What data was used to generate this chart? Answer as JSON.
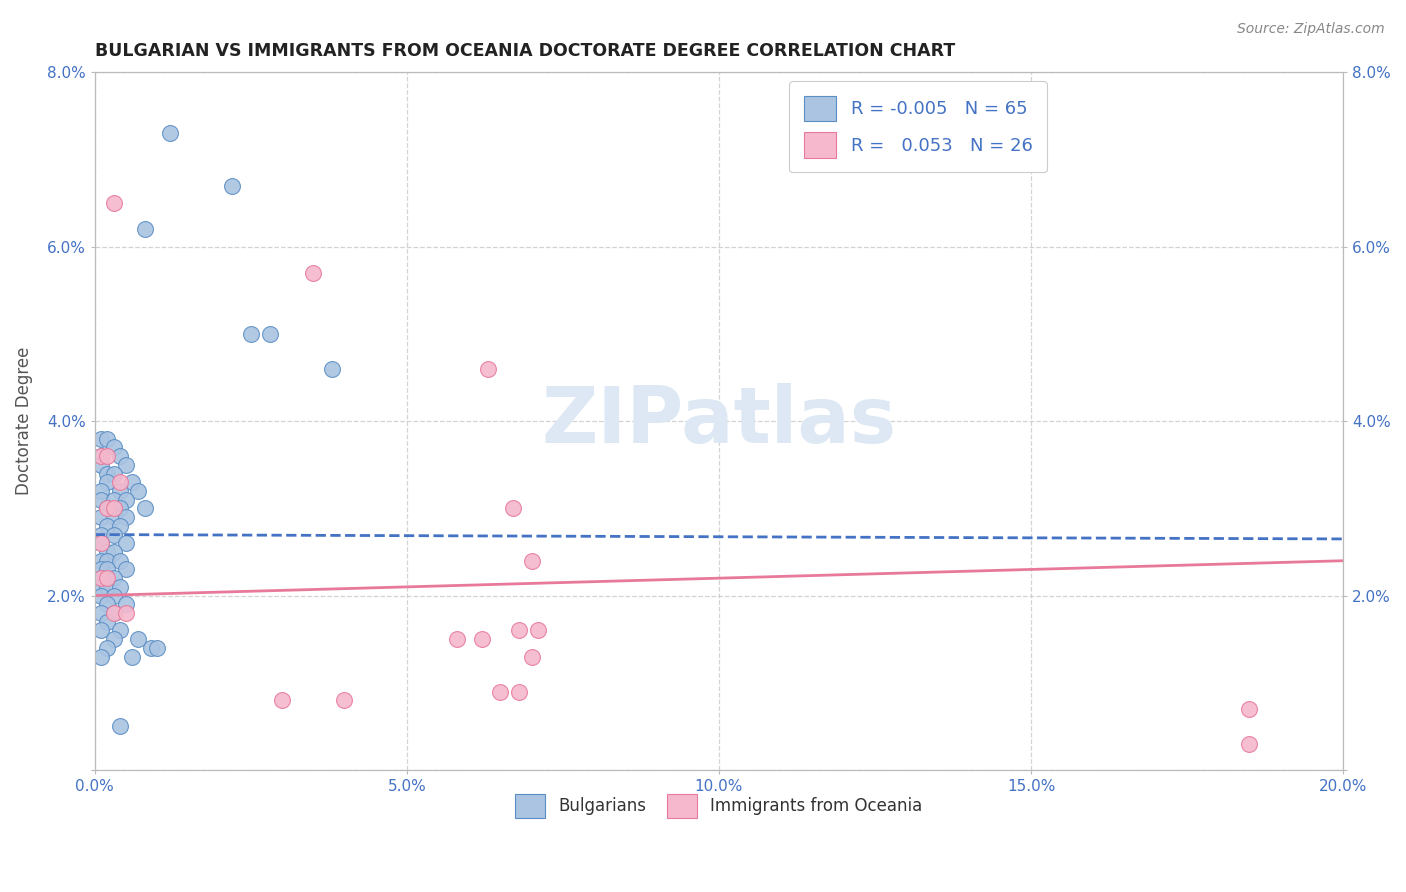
{
  "title": "BULGARIAN VS IMMIGRANTS FROM OCEANIA DOCTORATE DEGREE CORRELATION CHART",
  "source": "Source: ZipAtlas.com",
  "ylabel_label": "Doctorate Degree",
  "x_min": 0.0,
  "x_max": 0.2,
  "y_min": 0.0,
  "y_max": 0.08,
  "x_ticks": [
    0.0,
    0.05,
    0.1,
    0.15,
    0.2
  ],
  "y_ticks": [
    0.0,
    0.02,
    0.04,
    0.06,
    0.08
  ],
  "blue_R": "-0.005",
  "blue_N": "65",
  "pink_R": "0.053",
  "pink_N": "26",
  "blue_color": "#aac4e2",
  "pink_color": "#f5b8cc",
  "blue_edge_color": "#5b8ec4",
  "pink_edge_color": "#e8799a",
  "blue_line_color": "#4472c4",
  "pink_line_color": "#e8799a",
  "blue_scatter": [
    [
      0.012,
      0.073
    ],
    [
      0.022,
      0.067
    ],
    [
      0.008,
      0.062
    ],
    [
      0.025,
      0.05
    ],
    [
      0.028,
      0.05
    ],
    [
      0.038,
      0.046
    ],
    [
      0.001,
      0.038
    ],
    [
      0.002,
      0.038
    ],
    [
      0.003,
      0.037
    ],
    [
      0.001,
      0.036
    ],
    [
      0.004,
      0.036
    ],
    [
      0.001,
      0.035
    ],
    [
      0.005,
      0.035
    ],
    [
      0.002,
      0.034
    ],
    [
      0.003,
      0.034
    ],
    [
      0.002,
      0.033
    ],
    [
      0.006,
      0.033
    ],
    [
      0.001,
      0.032
    ],
    [
      0.004,
      0.032
    ],
    [
      0.007,
      0.032
    ],
    [
      0.001,
      0.031
    ],
    [
      0.003,
      0.031
    ],
    [
      0.005,
      0.031
    ],
    [
      0.002,
      0.03
    ],
    [
      0.004,
      0.03
    ],
    [
      0.008,
      0.03
    ],
    [
      0.001,
      0.029
    ],
    [
      0.003,
      0.029
    ],
    [
      0.005,
      0.029
    ],
    [
      0.002,
      0.028
    ],
    [
      0.004,
      0.028
    ],
    [
      0.001,
      0.027
    ],
    [
      0.003,
      0.027
    ],
    [
      0.001,
      0.026
    ],
    [
      0.005,
      0.026
    ],
    [
      0.002,
      0.025
    ],
    [
      0.003,
      0.025
    ],
    [
      0.001,
      0.024
    ],
    [
      0.002,
      0.024
    ],
    [
      0.004,
      0.024
    ],
    [
      0.001,
      0.023
    ],
    [
      0.002,
      0.023
    ],
    [
      0.005,
      0.023
    ],
    [
      0.001,
      0.022
    ],
    [
      0.003,
      0.022
    ],
    [
      0.001,
      0.021
    ],
    [
      0.002,
      0.021
    ],
    [
      0.004,
      0.021
    ],
    [
      0.001,
      0.02
    ],
    [
      0.003,
      0.02
    ],
    [
      0.002,
      0.019
    ],
    [
      0.005,
      0.019
    ],
    [
      0.001,
      0.018
    ],
    [
      0.003,
      0.018
    ],
    [
      0.002,
      0.017
    ],
    [
      0.001,
      0.016
    ],
    [
      0.004,
      0.016
    ],
    [
      0.003,
      0.015
    ],
    [
      0.007,
      0.015
    ],
    [
      0.002,
      0.014
    ],
    [
      0.009,
      0.014
    ],
    [
      0.01,
      0.014
    ],
    [
      0.001,
      0.013
    ],
    [
      0.006,
      0.013
    ],
    [
      0.004,
      0.005
    ]
  ],
  "pink_scatter": [
    [
      0.003,
      0.065
    ],
    [
      0.063,
      0.046
    ],
    [
      0.035,
      0.057
    ],
    [
      0.001,
      0.036
    ],
    [
      0.002,
      0.036
    ],
    [
      0.004,
      0.033
    ],
    [
      0.002,
      0.03
    ],
    [
      0.003,
      0.03
    ],
    [
      0.067,
      0.03
    ],
    [
      0.001,
      0.026
    ],
    [
      0.07,
      0.024
    ],
    [
      0.001,
      0.022
    ],
    [
      0.002,
      0.022
    ],
    [
      0.003,
      0.018
    ],
    [
      0.005,
      0.018
    ],
    [
      0.068,
      0.016
    ],
    [
      0.071,
      0.016
    ],
    [
      0.07,
      0.013
    ],
    [
      0.065,
      0.009
    ],
    [
      0.068,
      0.009
    ],
    [
      0.185,
      0.007
    ],
    [
      0.058,
      0.015
    ],
    [
      0.062,
      0.015
    ],
    [
      0.03,
      0.008
    ],
    [
      0.04,
      0.008
    ],
    [
      0.185,
      0.003
    ]
  ],
  "blue_trend_x": [
    0.0,
    0.2
  ],
  "blue_trend_y": [
    0.027,
    0.0265
  ],
  "pink_trend_x": [
    0.0,
    0.2
  ],
  "pink_trend_y": [
    0.02,
    0.024
  ],
  "background_color": "#ffffff",
  "grid_color": "#c8c8c8",
  "title_color": "#222222",
  "source_color": "#888888",
  "watermark_text": "ZIPatlas",
  "watermark_color": "#dde8f4"
}
